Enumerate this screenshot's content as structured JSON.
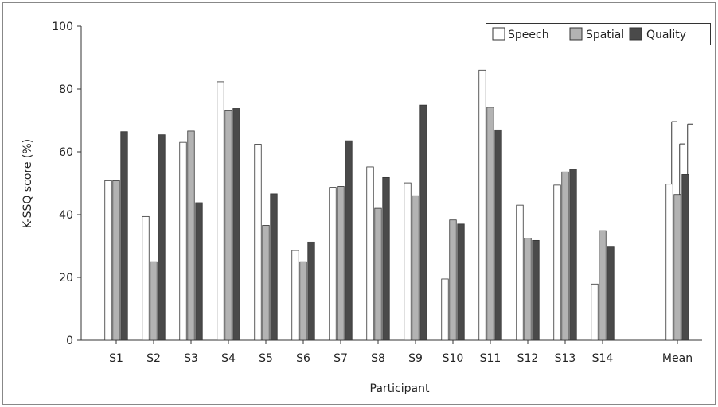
{
  "chart_data": {
    "type": "bar",
    "xlabel": "Participant",
    "ylabel": "K-SSQ score (%)",
    "ylim": [
      0,
      100
    ],
    "yticks": [
      0,
      20,
      40,
      60,
      80,
      100
    ],
    "grid": false,
    "legend_position": "top-right",
    "categories": [
      "S1",
      "S2",
      "S3",
      "S4",
      "S5",
      "S6",
      "S7",
      "S8",
      "S9",
      "S10",
      "S11",
      "S12",
      "S13",
      "S14",
      "Mean"
    ],
    "series": [
      {
        "name": "Speech",
        "color": "#ffffff",
        "values": [
          50.8,
          39.4,
          63.0,
          82.3,
          62.4,
          28.6,
          48.7,
          55.2,
          50.1,
          19.5,
          86.0,
          43.0,
          49.4,
          17.9,
          49.7
        ]
      },
      {
        "name": "Spatial",
        "color": "#b3b3b3",
        "values": [
          50.8,
          25.0,
          66.6,
          73.1,
          36.6,
          25.0,
          49.0,
          42.0,
          46.0,
          38.3,
          74.2,
          32.5,
          53.6,
          34.9,
          46.4
        ]
      },
      {
        "name": "Quality",
        "color": "#4a4a4a",
        "values": [
          66.4,
          65.4,
          43.8,
          73.8,
          46.6,
          31.3,
          63.5,
          51.8,
          74.9,
          37.0,
          67.0,
          31.8,
          54.5,
          29.7,
          52.8
        ]
      }
    ],
    "error_bars": {
      "category": "Mean",
      "upper": [
        69.6,
        62.5,
        68.8
      ]
    }
  }
}
